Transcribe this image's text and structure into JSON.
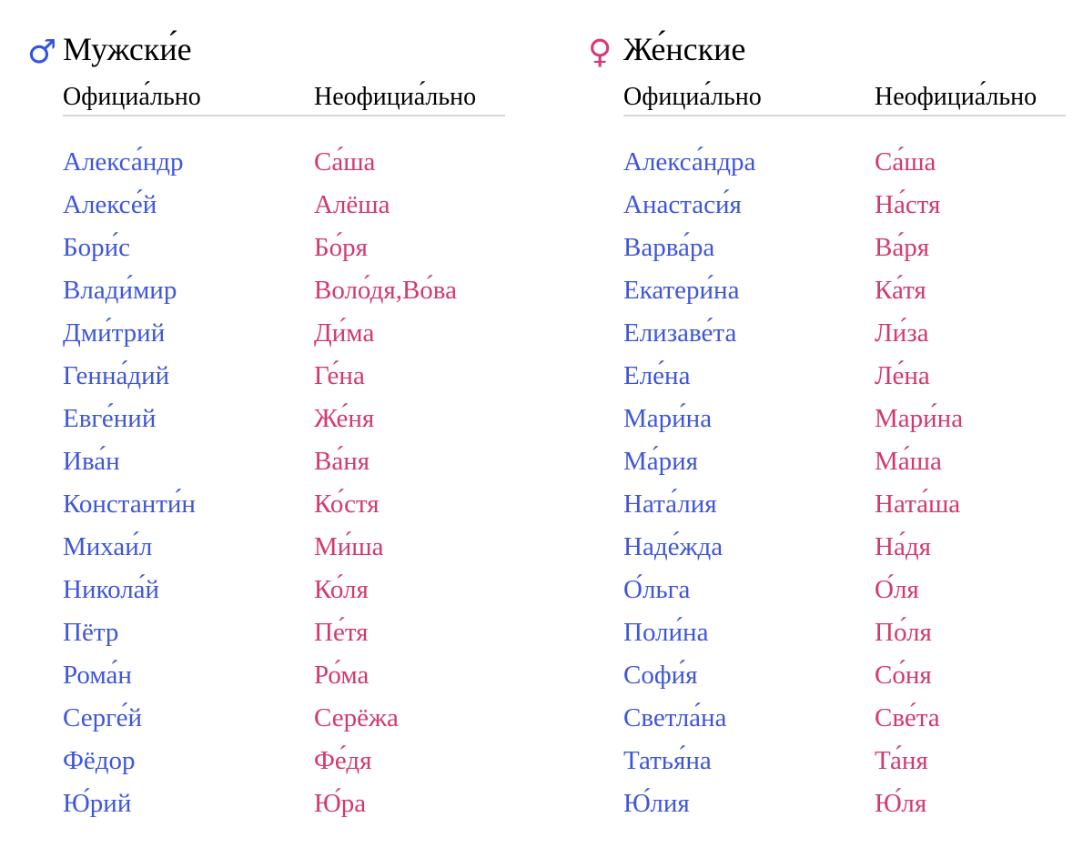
{
  "male": {
    "symbol": "♂",
    "title": "Мужски́е",
    "col_official": "Официа́льно",
    "col_informal": "Неофициа́льно",
    "names": [
      {
        "official": "Алекса́ндр",
        "informal": "Са́ша"
      },
      {
        "official": "Алексе́й",
        "informal": "Алёша"
      },
      {
        "official": "Бори́с",
        "informal": "Бо́ря"
      },
      {
        "official": "Влади́мир",
        "informal": "Воло́дя,Во́ва"
      },
      {
        "official": "Дми́трий",
        "informal": "Ди́ма"
      },
      {
        "official": "Генна́дий",
        "informal": "Ге́на"
      },
      {
        "official": "Евге́ний",
        "informal": "Же́ня"
      },
      {
        "official": "Ива́н",
        "informal": "Ва́ня"
      },
      {
        "official": "Константи́н",
        "informal": "Ко́стя"
      },
      {
        "official": "Михаи́л",
        "informal": "Ми́ша"
      },
      {
        "official": "Никола́й",
        "informal": "Ко́ля"
      },
      {
        "official": "Пётр",
        "informal": "Пе́тя"
      },
      {
        "official": "Рома́н",
        "informal": "Ро́ма"
      },
      {
        "official": "Серге́й",
        "informal": "Серёжа"
      },
      {
        "official": "Фёдор",
        "informal": "Фе́дя"
      },
      {
        "official": "Ю́рий",
        "informal": "Ю́ра"
      }
    ]
  },
  "female": {
    "symbol": "♀",
    "title": "Же́нские",
    "col_official": "Официа́льно",
    "col_informal": "Неофициа́льно",
    "names": [
      {
        "official": "Алекса́ндра",
        "informal": "Са́ша"
      },
      {
        "official": "Анастаси́я",
        "informal": "На́стя"
      },
      {
        "official": "Варва́ра",
        "informal": "Ва́ря"
      },
      {
        "official": "Екатери́на",
        "informal": "Ка́тя"
      },
      {
        "official": "Елизаве́та",
        "informal": "Ли́за"
      },
      {
        "official": "Еле́на",
        "informal": "Ле́на"
      },
      {
        "official": "Мари́на",
        "informal": "Мари́на"
      },
      {
        "official": "Ма́рия",
        "informal": "Ма́ша"
      },
      {
        "official": "Ната́лия",
        "informal": "Ната́ша"
      },
      {
        "official": "Наде́жда",
        "informal": "На́дя"
      },
      {
        "official": "О́льга",
        "informal": "О́ля"
      },
      {
        "official": "Поли́на",
        "informal": "По́ля"
      },
      {
        "official": "Софи́я",
        "informal": "Со́ня"
      },
      {
        "official": "Светла́на",
        "informal": "Све́та"
      },
      {
        "official": "Татья́на",
        "informal": "Та́ня"
      },
      {
        "official": "Ю́лия",
        "informal": "Ю́ля"
      }
    ]
  }
}
